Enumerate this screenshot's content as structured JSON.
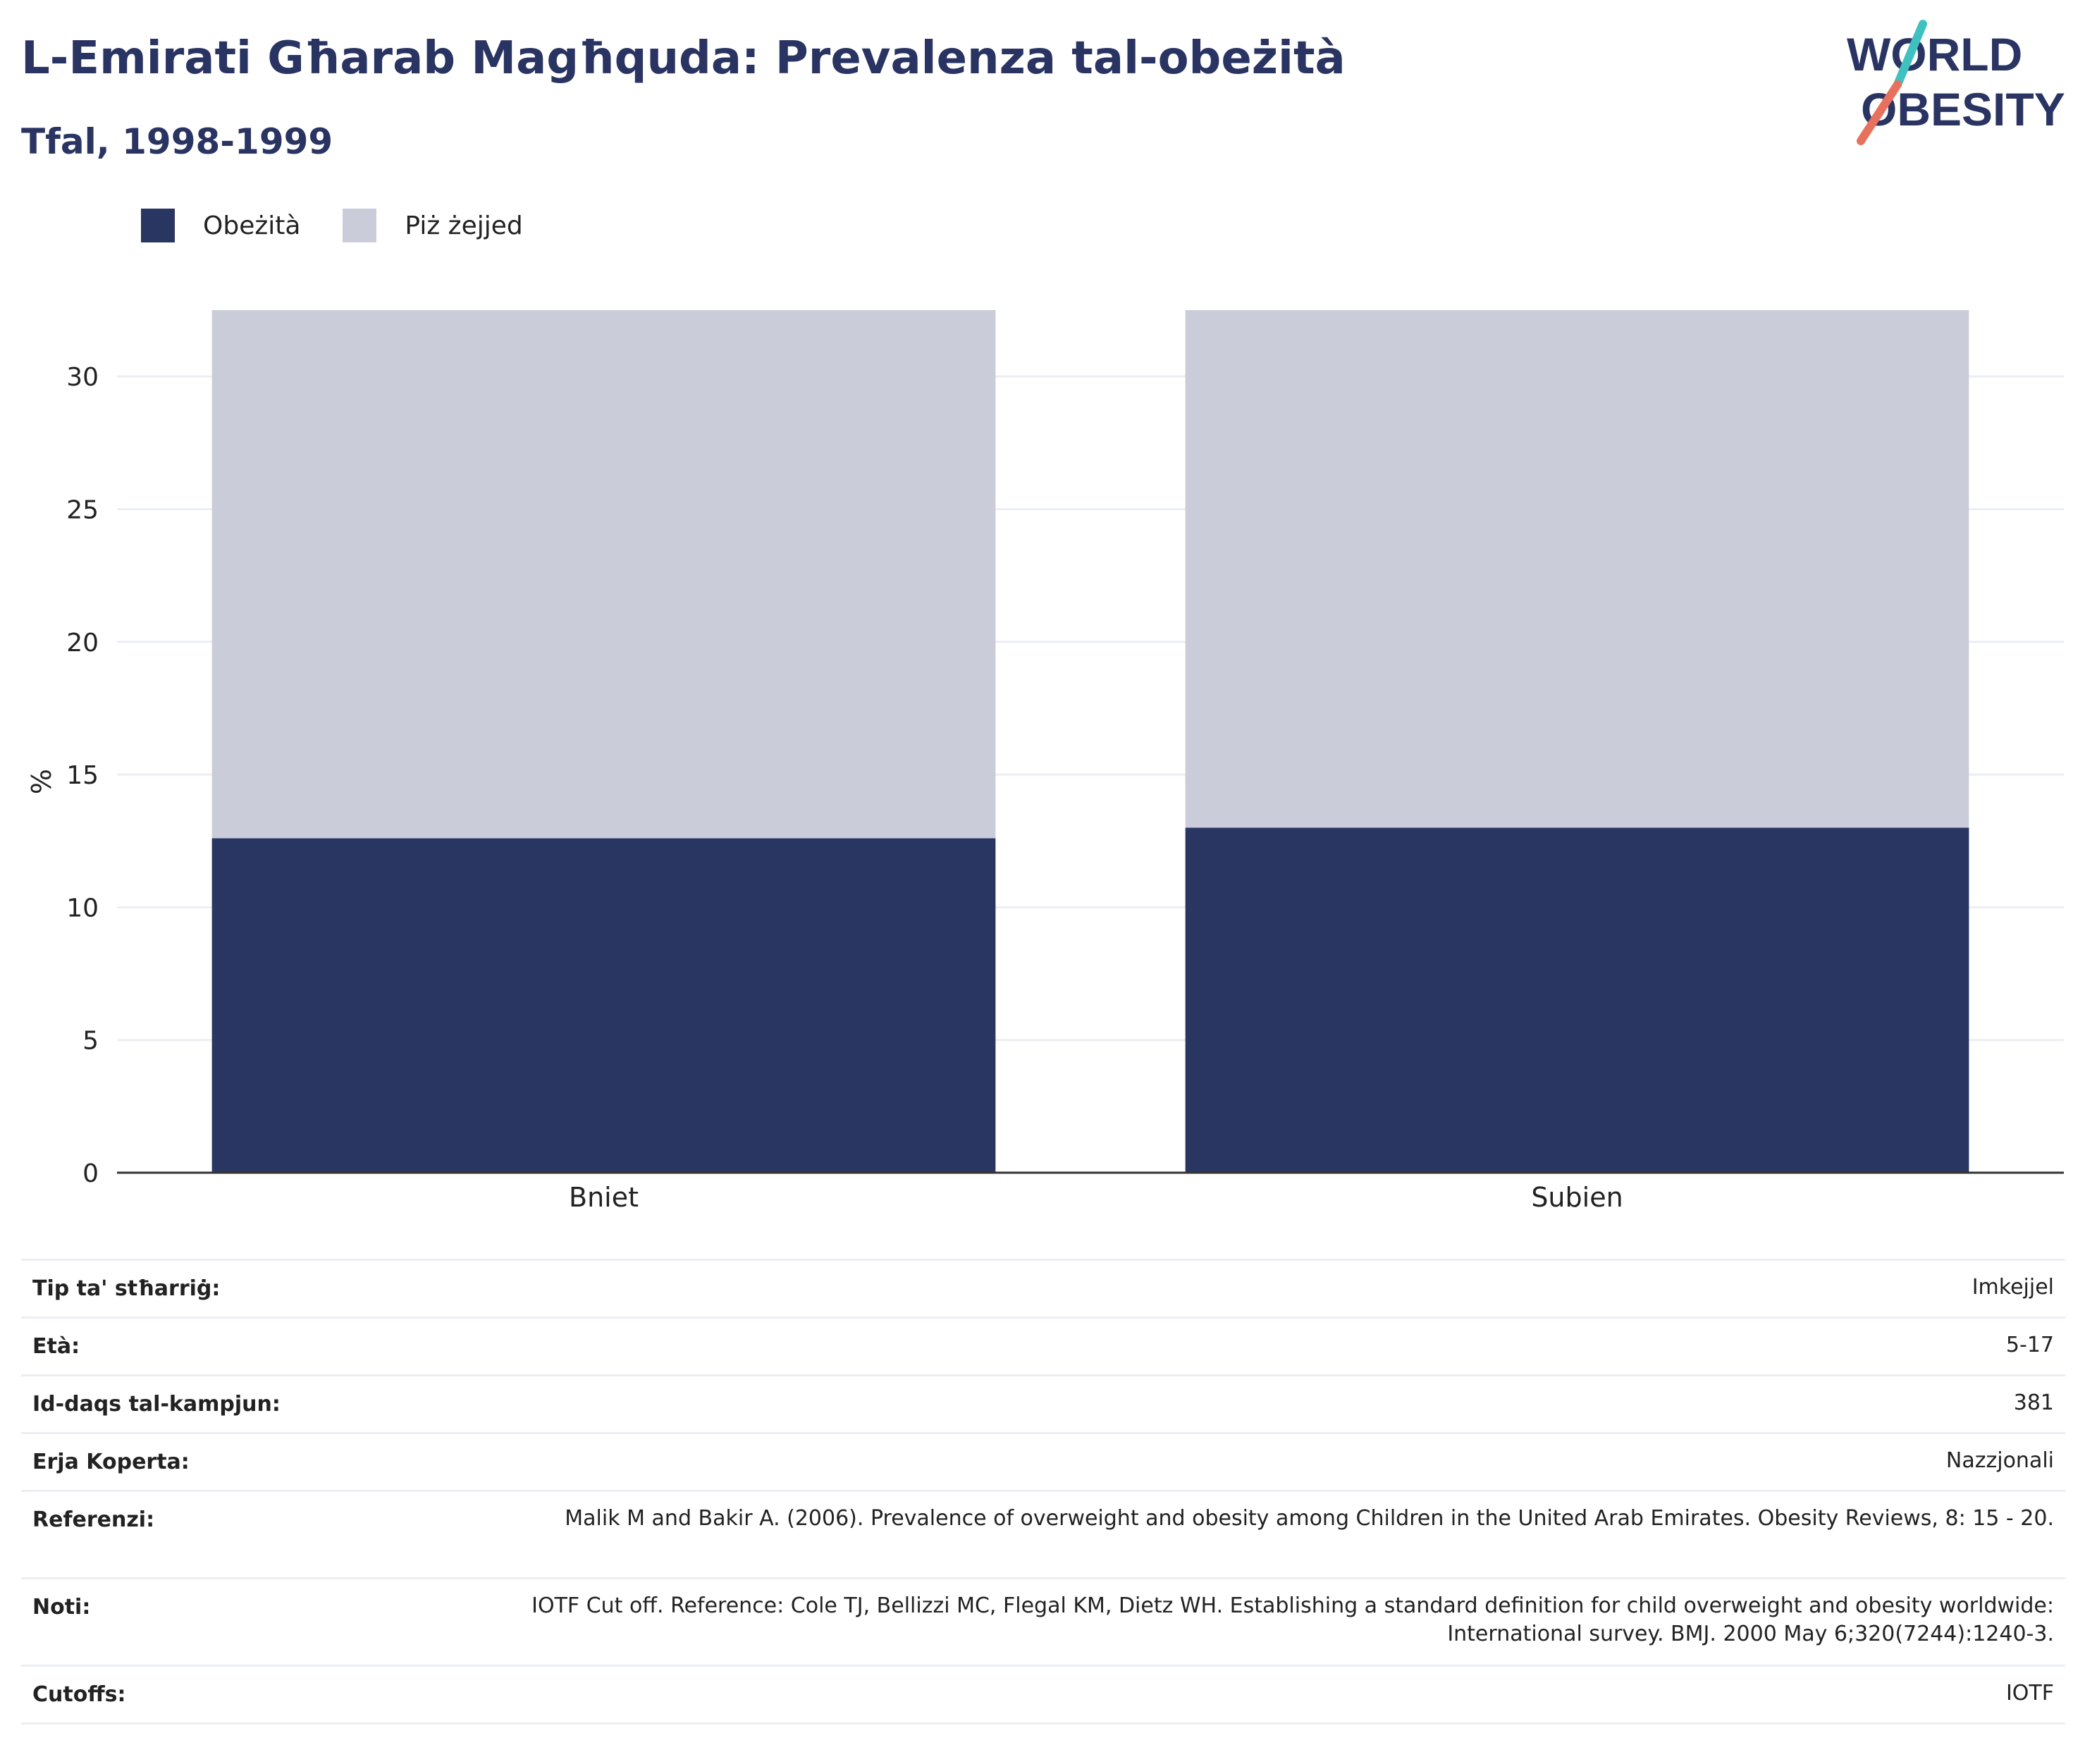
{
  "header": {
    "title": "L-Emirati Għarab Magħquda: Prevalenza tal-obeżità",
    "subtitle": "Tfal, 1998-1999"
  },
  "logo": {
    "line1": "WORLD",
    "line2": "OBESITY"
  },
  "colors": {
    "obesity": "#2a3662",
    "overweight": "#cacdd9",
    "title": "#2a3462",
    "grid": "#eceef3",
    "axis": "#333333"
  },
  "chart_data": {
    "type": "bar",
    "stacked": true,
    "categories": [
      "Bniet",
      "Subien"
    ],
    "series": [
      {
        "name": "Obeżità",
        "values": [
          12.6,
          13.0
        ]
      },
      {
        "name": "Piż żejjed",
        "values": [
          19.9,
          19.5
        ]
      }
    ],
    "ylabel": "%",
    "ylim": [
      0,
      32.5
    ],
    "yticks": [
      0,
      5,
      10,
      15,
      20,
      25,
      30
    ],
    "grid": true,
    "legend": "top-left"
  },
  "meta": [
    {
      "key": "Tip ta' stħarriġ:",
      "value": "Imkejjel"
    },
    {
      "key": "Età:",
      "value": "5-17"
    },
    {
      "key": "Id-daqs tal-kampjun:",
      "value": "381"
    },
    {
      "key": "Erja Koperta:",
      "value": "Nazzjonali"
    },
    {
      "key": "Referenzi:",
      "value": "Malik M and Bakir A. (2006). Prevalence of overweight and obesity among Children in the United Arab Emirates. Obesity Reviews, 8: 15 - 20."
    },
    {
      "key": "Noti:",
      "value": "IOTF Cut off. Reference: Cole TJ, Bellizzi MC, Flegal KM, Dietz WH. Establishing a standard definition for child overweight and obesity worldwide: International survey. BMJ. 2000 May 6;320(7244):1240-3."
    },
    {
      "key": "Cutoffs:",
      "value": "IOTF"
    }
  ]
}
